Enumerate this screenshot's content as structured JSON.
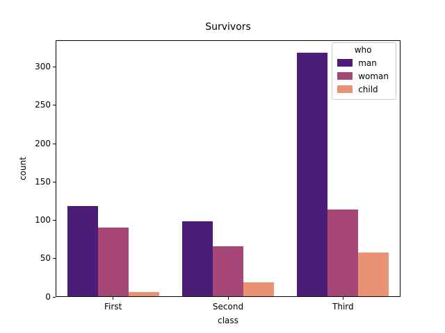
{
  "window": {
    "background": "#ffffff",
    "axis_color": "#000000"
  },
  "chart_data": {
    "type": "bar",
    "title": "Survivors",
    "xlabel": "class",
    "ylabel": "count",
    "categories": [
      "First",
      "Second",
      "Third"
    ],
    "series": [
      {
        "name": "man",
        "color": "#4c1d76",
        "values": [
          119,
          99,
          319
        ]
      },
      {
        "name": "woman",
        "color": "#a74778",
        "values": [
          91,
          66,
          114
        ]
      },
      {
        "name": "child",
        "color": "#e99274",
        "values": [
          6,
          19,
          58
        ]
      }
    ],
    "legend": {
      "title": "who",
      "position": "upper right"
    },
    "yticks": [
      0,
      50,
      100,
      150,
      200,
      250,
      300
    ],
    "ylim": [
      0,
      335
    ],
    "grid": false,
    "group_width_fraction": 0.8
  }
}
